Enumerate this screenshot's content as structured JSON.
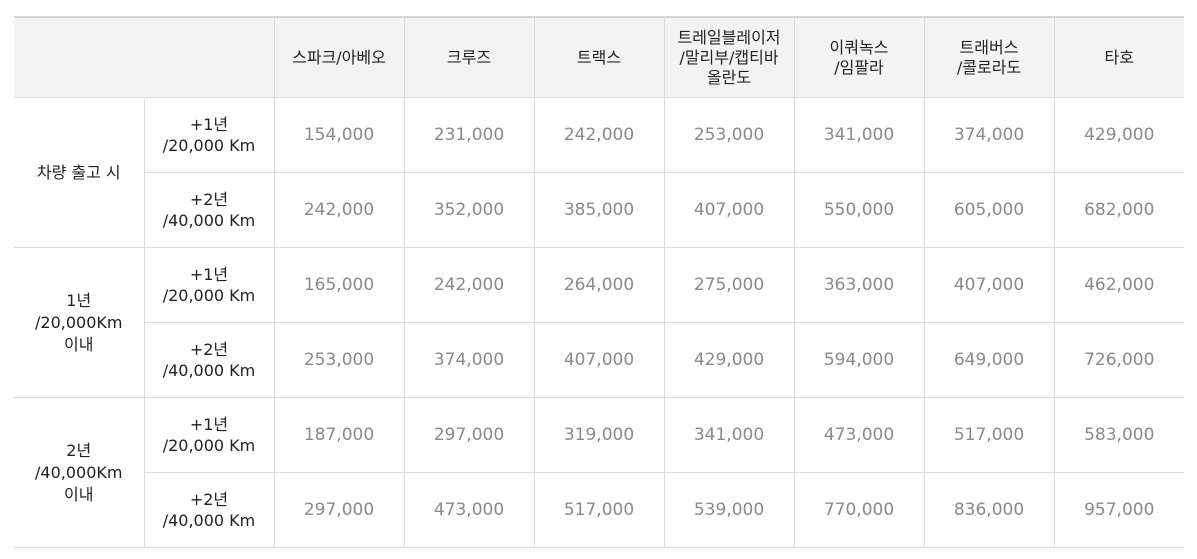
{
  "columns": [
    "스파크/아베오",
    "크루즈",
    "트랙스",
    "트레일블레이저\n/말리부/캡티바\n올란도",
    "이쿼녹스\n/임팔라",
    "트래버스\n/콜로라도",
    "타호"
  ],
  "groups": [
    {
      "label": "차량 출고 시",
      "rows": [
        {
          "option": "+1년\n/20,000 Km",
          "values": [
            "154,000",
            "231,000",
            "242,000",
            "253,000",
            "341,000",
            "374,000",
            "429,000"
          ]
        },
        {
          "option": "+2년\n/40,000 Km",
          "values": [
            "242,000",
            "352,000",
            "385,000",
            "407,000",
            "550,000",
            "605,000",
            "682,000"
          ]
        }
      ]
    },
    {
      "label": "1년\n/20,000Km\n이내",
      "rows": [
        {
          "option": "+1년\n/20,000 Km",
          "values": [
            "165,000",
            "242,000",
            "264,000",
            "275,000",
            "363,000",
            "407,000",
            "462,000"
          ]
        },
        {
          "option": "+2년\n/40,000 Km",
          "values": [
            "253,000",
            "374,000",
            "407,000",
            "429,000",
            "594,000",
            "649,000",
            "726,000"
          ]
        }
      ]
    },
    {
      "label": "2년\n/40,000Km\n이내",
      "rows": [
        {
          "option": "+1년\n/20,000 Km",
          "values": [
            "187,000",
            "297,000",
            "319,000",
            "341,000",
            "473,000",
            "517,000",
            "583,000"
          ]
        },
        {
          "option": "+2년\n/40,000 Km",
          "values": [
            "297,000",
            "473,000",
            "517,000",
            "539,000",
            "770,000",
            "836,000",
            "957,000"
          ]
        }
      ]
    }
  ]
}
